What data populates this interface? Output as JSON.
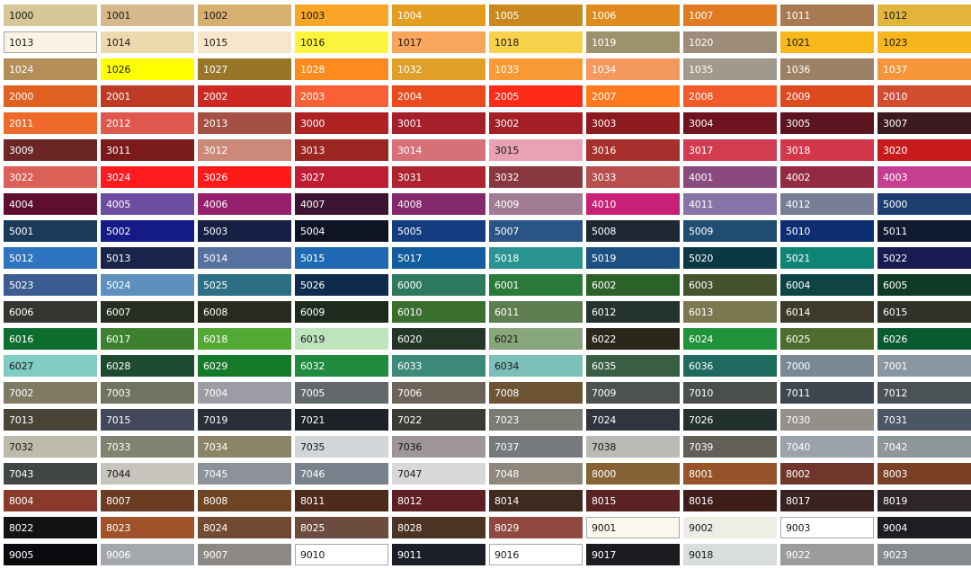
{
  "colors": {
    "dark_text": "#1a1a1a",
    "light_text": "#ffffff"
  },
  "rows": [
    [
      [
        "1000",
        "#D6C896",
        "d"
      ],
      [
        "1001",
        "#D6B88C",
        "d"
      ],
      [
        "1002",
        "#D6B06E",
        "d"
      ],
      [
        "1003",
        "#F9A628",
        "d"
      ],
      [
        "1004",
        "#E39E22",
        "l"
      ],
      [
        "1005",
        "#C9891F",
        "l"
      ],
      [
        "1006",
        "#E08A1E",
        "l"
      ],
      [
        "1007",
        "#E07B22",
        "l"
      ],
      [
        "1011",
        "#A97A52",
        "l"
      ],
      [
        "1012",
        "#E2B43A",
        "d"
      ]
    ],
    [
      [
        "1013",
        "#FBF4E4",
        "d"
      ],
      [
        "1014",
        "#EED8AE",
        "d"
      ],
      [
        "1015",
        "#F7E6CC",
        "d"
      ],
      [
        "1016",
        "#FCF43C",
        "d"
      ],
      [
        "1017",
        "#F9A65C",
        "d"
      ],
      [
        "1018",
        "#F8D24A",
        "d"
      ],
      [
        "1019",
        "#9E926C",
        "l"
      ],
      [
        "1020",
        "#9E8C7A",
        "l"
      ],
      [
        "1021",
        "#F8B81A",
        "d"
      ],
      [
        "1023",
        "#F8B61E",
        "d"
      ]
    ],
    [
      [
        "1024",
        "#B48E58",
        "l"
      ],
      [
        "1026",
        "#FFFF00",
        "d"
      ],
      [
        "1027",
        "#99752A",
        "l"
      ],
      [
        "1028",
        "#FC8A1E",
        "l"
      ],
      [
        "1032",
        "#E0A028",
        "l"
      ],
      [
        "1033",
        "#F99A36",
        "l"
      ],
      [
        "1034",
        "#F4985E",
        "l"
      ],
      [
        "1035",
        "#A09A8C",
        "l"
      ],
      [
        "1036",
        "#9C8164",
        "l"
      ],
      [
        "1037",
        "#F6953A",
        "l"
      ]
    ],
    [
      [
        "2000",
        "#E06022",
        "l"
      ],
      [
        "2001",
        "#BE3A24",
        "l"
      ],
      [
        "2002",
        "#CB2A24",
        "l"
      ],
      [
        "2003",
        "#FA6036",
        "l"
      ],
      [
        "2004",
        "#EA4A1E",
        "l"
      ],
      [
        "2005",
        "#FF2A18",
        "l"
      ],
      [
        "2007",
        "#FF7A1E",
        "l"
      ],
      [
        "2008",
        "#F35A2A",
        "l"
      ],
      [
        "2009",
        "#DD4A20",
        "l"
      ],
      [
        "2010",
        "#D24C30",
        "l"
      ]
    ],
    [
      [
        "2011",
        "#EE6A2A",
        "l"
      ],
      [
        "2012",
        "#DE5850",
        "l"
      ],
      [
        "2013",
        "#A55044",
        "l"
      ],
      [
        "3000",
        "#AF2224",
        "l"
      ],
      [
        "3001",
        "#A5202A",
        "l"
      ],
      [
        "3002",
        "#A41E26",
        "l"
      ],
      [
        "3003",
        "#8C1A1E",
        "l"
      ],
      [
        "3004",
        "#6E1420",
        "l"
      ],
      [
        "3005",
        "#5C1420",
        "l"
      ],
      [
        "3007",
        "#3A1A1E",
        "l"
      ]
    ],
    [
      [
        "3009",
        "#6C2626",
        "l"
      ],
      [
        "3011",
        "#7A1A1A",
        "l"
      ],
      [
        "3012",
        "#CC8878",
        "l"
      ],
      [
        "3013",
        "#9C2522",
        "l"
      ],
      [
        "3014",
        "#D87078",
        "l"
      ],
      [
        "3015",
        "#E8A2B4",
        "d"
      ],
      [
        "3016",
        "#A8302C",
        "l"
      ],
      [
        "3017",
        "#D23C50",
        "l"
      ],
      [
        "3018",
        "#D2374A",
        "l"
      ],
      [
        "3020",
        "#C81A1A",
        "l"
      ]
    ],
    [
      [
        "3022",
        "#DA6058",
        "l"
      ],
      [
        "3024",
        "#FF1A20",
        "l"
      ],
      [
        "3026",
        "#FF1A18",
        "l"
      ],
      [
        "3027",
        "#C01C34",
        "l"
      ],
      [
        "3031",
        "#AF2230",
        "l"
      ],
      [
        "3032",
        "#8A3840",
        "l"
      ],
      [
        "3033",
        "#B84E4E",
        "l"
      ],
      [
        "4001",
        "#8A4A80",
        "l"
      ],
      [
        "4002",
        "#932A44",
        "l"
      ],
      [
        "4003",
        "#C63E92",
        "l"
      ]
    ],
    [
      [
        "4004",
        "#5E0E2E",
        "l"
      ],
      [
        "4005",
        "#6C4C9E",
        "l"
      ],
      [
        "4006",
        "#96206E",
        "l"
      ],
      [
        "4007",
        "#3E1434",
        "l"
      ],
      [
        "4008",
        "#84286C",
        "l"
      ],
      [
        "4009",
        "#A27C92",
        "l"
      ],
      [
        "4010",
        "#C82076",
        "l"
      ],
      [
        "4011",
        "#8674A8",
        "l"
      ],
      [
        "4012",
        "#767E96",
        "l"
      ],
      [
        "5000",
        "#1E3E70",
        "l"
      ]
    ],
    [
      [
        "5001",
        "#1A3A5A",
        "l"
      ],
      [
        "5002",
        "#141A86",
        "l"
      ],
      [
        "5003",
        "#152044",
        "l"
      ],
      [
        "5004",
        "#0E1424",
        "l"
      ],
      [
        "5005",
        "#143C80",
        "l"
      ],
      [
        "5007",
        "#2A5486",
        "l"
      ],
      [
        "5008",
        "#1E2834",
        "l"
      ],
      [
        "5009",
        "#214D72",
        "l"
      ],
      [
        "5010",
        "#0E2E72",
        "l"
      ],
      [
        "5011",
        "#101A30",
        "l"
      ]
    ],
    [
      [
        "5012",
        "#2E74C0",
        "l"
      ],
      [
        "5013",
        "#1A244A",
        "l"
      ],
      [
        "5014",
        "#5670A0",
        "l"
      ],
      [
        "5015",
        "#1E68B4",
        "l"
      ],
      [
        "5017",
        "#105C9E",
        "l"
      ],
      [
        "5018",
        "#2A9490",
        "l"
      ],
      [
        "5019",
        "#1C5080",
        "l"
      ],
      [
        "5020",
        "#0A3844",
        "l"
      ],
      [
        "5021",
        "#108474",
        "l"
      ],
      [
        "5022",
        "#181A52",
        "l"
      ]
    ],
    [
      [
        "5023",
        "#3A5C90",
        "l"
      ],
      [
        "5024",
        "#5E90BE",
        "l"
      ],
      [
        "5025",
        "#2C6E84",
        "l"
      ],
      [
        "5026",
        "#0E2A4C",
        "l"
      ],
      [
        "6000",
        "#2E7A5E",
        "l"
      ],
      [
        "6001",
        "#2C7A3A",
        "l"
      ],
      [
        "6002",
        "#2A6228",
        "l"
      ],
      [
        "6003",
        "#44522E",
        "l"
      ],
      [
        "6004",
        "#0E4444",
        "l"
      ],
      [
        "6005",
        "#0E3A26",
        "l"
      ]
    ],
    [
      [
        "6006",
        "#343630",
        "l"
      ],
      [
        "6007",
        "#262E22",
        "l"
      ],
      [
        "6008",
        "#2A2A1E",
        "l"
      ],
      [
        "6009",
        "#1E2A1E",
        "l"
      ],
      [
        "6010",
        "#3A6E2E",
        "l"
      ],
      [
        "6011",
        "#5E7E50",
        "l"
      ],
      [
        "6012",
        "#243230",
        "l"
      ],
      [
        "6013",
        "#7A7850",
        "l"
      ],
      [
        "6014",
        "#3E3A2A",
        "l"
      ],
      [
        "6015",
        "#2E3228",
        "l"
      ]
    ],
    [
      [
        "6016",
        "#0E6E30",
        "l"
      ],
      [
        "6017",
        "#3C8030",
        "l"
      ],
      [
        "6018",
        "#52AA34",
        "l"
      ],
      [
        "6019",
        "#BEE4BE",
        "d"
      ],
      [
        "6020",
        "#243628",
        "l"
      ],
      [
        "6021",
        "#88A67C",
        "d"
      ],
      [
        "6022",
        "#2A261A",
        "l"
      ],
      [
        "6024",
        "#20923A",
        "l"
      ],
      [
        "6025",
        "#4E6C2E",
        "l"
      ],
      [
        "6026",
        "#0A5A30",
        "l"
      ]
    ],
    [
      [
        "6027",
        "#7ECCC2",
        "d"
      ],
      [
        "6028",
        "#1E4A30",
        "l"
      ],
      [
        "6029",
        "#147A2A",
        "l"
      ],
      [
        "6032",
        "#208A3E",
        "l"
      ],
      [
        "6033",
        "#3E8A78",
        "l"
      ],
      [
        "6034",
        "#7CBEB8",
        "d"
      ],
      [
        "6035",
        "#3A5E44",
        "l"
      ],
      [
        "6036",
        "#1E6A5E",
        "l"
      ],
      [
        "7000",
        "#7A8896",
        "l"
      ],
      [
        "7001",
        "#8A96A0",
        "l"
      ]
    ],
    [
      [
        "7002",
        "#7E7A64",
        "l"
      ],
      [
        "7003",
        "#727260",
        "l"
      ],
      [
        "7004",
        "#9C9CA4",
        "l"
      ],
      [
        "7005",
        "#62686A",
        "l"
      ],
      [
        "7006",
        "#6C6458",
        "l"
      ],
      [
        "7008",
        "#6C5434",
        "l"
      ],
      [
        "7009",
        "#4E524E",
        "l"
      ],
      [
        "7010",
        "#4A4E4C",
        "l"
      ],
      [
        "7011",
        "#3E4650",
        "l"
      ],
      [
        "7012",
        "#4A5256",
        "l"
      ]
    ],
    [
      [
        "7013",
        "#4A4438",
        "l"
      ],
      [
        "7015",
        "#42485A",
        "l"
      ],
      [
        "7019",
        "#2A2E38",
        "l"
      ],
      [
        "7021",
        "#1E2228",
        "l"
      ],
      [
        "7022",
        "#3A3A36",
        "l"
      ],
      [
        "7023",
        "#7A7C74",
        "l"
      ],
      [
        "7024",
        "#30343E",
        "l"
      ],
      [
        "7026",
        "#22302E",
        "l"
      ],
      [
        "7030",
        "#929088",
        "l"
      ],
      [
        "7031",
        "#4A5664",
        "l"
      ]
    ],
    [
      [
        "7032",
        "#BCBAAA",
        "d"
      ],
      [
        "7033",
        "#7E8470",
        "l"
      ],
      [
        "7034",
        "#8C8466",
        "l"
      ],
      [
        "7035",
        "#D2D6D8",
        "d"
      ],
      [
        "7036",
        "#9E9698",
        "d"
      ],
      [
        "7037",
        "#767A7C",
        "l"
      ],
      [
        "7038",
        "#B8BAB6",
        "d"
      ],
      [
        "7039",
        "#625E58",
        "l"
      ],
      [
        "7040",
        "#9CA2AA",
        "l"
      ],
      [
        "7042",
        "#8E9698",
        "l"
      ]
    ],
    [
      [
        "7043",
        "#424644",
        "l"
      ],
      [
        "7044",
        "#C6C4BC",
        "d"
      ],
      [
        "7045",
        "#8C9298",
        "l"
      ],
      [
        "7046",
        "#78828C",
        "l"
      ],
      [
        "7047",
        "#D8D8DA",
        "d"
      ],
      [
        "7048",
        "#8E887C",
        "l"
      ],
      [
        "8000",
        "#866236",
        "l"
      ],
      [
        "8001",
        "#965228",
        "l"
      ],
      [
        "8002",
        "#70362C",
        "l"
      ],
      [
        "8003",
        "#7A4026",
        "l"
      ]
    ],
    [
      [
        "8004",
        "#8A3A2A",
        "l"
      ],
      [
        "8007",
        "#6A3C22",
        "l"
      ],
      [
        "8008",
        "#6E4524",
        "l"
      ],
      [
        "8011",
        "#4E2A1C",
        "l"
      ],
      [
        "8012",
        "#5E2024",
        "l"
      ],
      [
        "8014",
        "#3E2A1E",
        "l"
      ],
      [
        "8015",
        "#5A2222",
        "l"
      ],
      [
        "8016",
        "#3E1E18",
        "l"
      ],
      [
        "8017",
        "#3A2220",
        "l"
      ],
      [
        "8019",
        "#2E2626",
        "l"
      ]
    ],
    [
      [
        "8022",
        "#141214",
        "l"
      ],
      [
        "8023",
        "#A0522A",
        "l"
      ],
      [
        "8024",
        "#714A34",
        "l"
      ],
      [
        "8025",
        "#6C4C3E",
        "l"
      ],
      [
        "8028",
        "#4C3424",
        "l"
      ],
      [
        "8029",
        "#904840",
        "l"
      ],
      [
        "9001",
        "#FBF7EC",
        "d"
      ],
      [
        "9002",
        "#EEEDE6",
        "d"
      ],
      [
        "9003",
        "#FFFFFF",
        "d"
      ],
      [
        "9004",
        "#1E1E22",
        "l"
      ]
    ],
    [
      [
        "9005",
        "#0A0A0E",
        "l"
      ],
      [
        "9006",
        "#A4A8AC",
        "l"
      ],
      [
        "9007",
        "#8C8884",
        "l"
      ],
      [
        "9010",
        "#FFFFFF",
        "d"
      ],
      [
        "9011",
        "#1C2026",
        "l"
      ],
      [
        "9016",
        "#FFFFFF",
        "d"
      ],
      [
        "9017",
        "#1A1C20",
        "l"
      ],
      [
        "9018",
        "#D8DEDC",
        "d"
      ],
      [
        "9022",
        "#9C9C9E",
        "l"
      ],
      [
        "9023",
        "#848A8E",
        "l"
      ]
    ]
  ],
  "bordered_codes": [
    "1013",
    "9001",
    "9003",
    "9010",
    "9016"
  ]
}
